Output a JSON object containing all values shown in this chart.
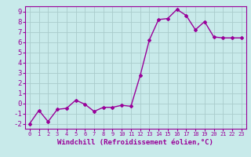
{
  "x": [
    0,
    1,
    2,
    3,
    4,
    5,
    6,
    7,
    8,
    9,
    10,
    11,
    12,
    13,
    14,
    15,
    16,
    17,
    18,
    19,
    20,
    21,
    22,
    23
  ],
  "y": [
    -2.0,
    -0.7,
    -1.8,
    -0.6,
    -0.5,
    0.3,
    -0.1,
    -0.8,
    -0.4,
    -0.4,
    -0.2,
    -0.3,
    2.7,
    6.2,
    8.2,
    8.3,
    9.2,
    8.6,
    7.2,
    8.0,
    6.5,
    6.4,
    6.4,
    6.4
  ],
  "line_color": "#990099",
  "marker": "D",
  "markersize": 2,
  "linewidth": 1.0,
  "xlabel": "Windchill (Refroidissement éolien,°C)",
  "xlim": [
    -0.5,
    23.5
  ],
  "ylim": [
    -2.5,
    9.5
  ],
  "yticks": [
    -2,
    -1,
    0,
    1,
    2,
    3,
    4,
    5,
    6,
    7,
    8,
    9
  ],
  "xticks": [
    0,
    1,
    2,
    3,
    4,
    5,
    6,
    7,
    8,
    9,
    10,
    11,
    12,
    13,
    14,
    15,
    16,
    17,
    18,
    19,
    20,
    21,
    22,
    23
  ],
  "bg_color": "#c8eaea",
  "grid_color": "#aacccc",
  "tick_color": "#990099",
  "label_color": "#990099",
  "xlabel_fontsize": 6.5,
  "ytick_fontsize": 6.5,
  "xtick_fontsize": 5.0
}
